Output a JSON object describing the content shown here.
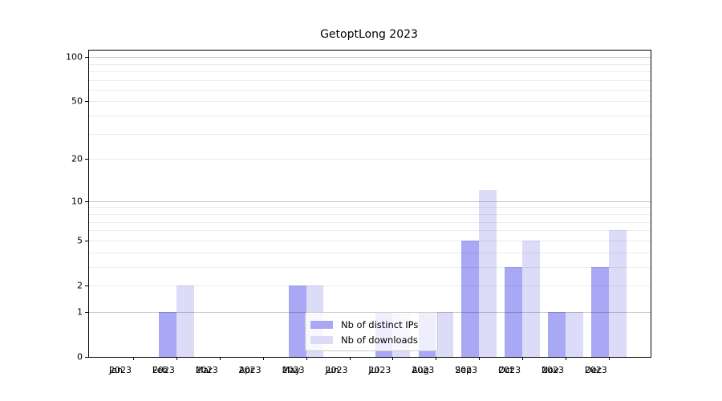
{
  "chart_data": {
    "type": "bar",
    "title": "GetoptLong 2023",
    "categories": [
      "Jan",
      "Feb",
      "Mar",
      "Apr",
      "May",
      "Jun",
      "Jul",
      "Aug",
      "Sep",
      "Oct",
      "Nov",
      "Dec"
    ],
    "year_label": "2023",
    "series": [
      {
        "name": "Nb of distinct IPs",
        "color": "#a8a8f4",
        "values": [
          0,
          1,
          0,
          0,
          2,
          0,
          1,
          1,
          5,
          3,
          1,
          3
        ]
      },
      {
        "name": "Nb of downloads",
        "color": "#dcdcf9",
        "values": [
          0,
          2,
          0,
          0,
          2,
          0,
          1,
          1,
          12,
          5,
          1,
          6
        ]
      }
    ],
    "xlabel": "",
    "ylabel": "",
    "y_axis": {
      "scale": "log1p",
      "ticks": [
        0,
        1,
        2,
        5,
        10,
        20,
        50,
        100
      ],
      "max": 110.5,
      "major_gridlines": [
        1,
        10,
        100
      ],
      "minor_gridlines": [
        2,
        3,
        4,
        5,
        6,
        7,
        8,
        9,
        20,
        30,
        40,
        50,
        60,
        70,
        80,
        90
      ]
    },
    "grid": true,
    "legend_position": "lower-center-overlapping-plot"
  },
  "colors": {
    "background": "#ffffff",
    "axis": "#000000",
    "series_distinct_ips": "#a8a8f4",
    "series_downloads": "#dcdcf9"
  }
}
